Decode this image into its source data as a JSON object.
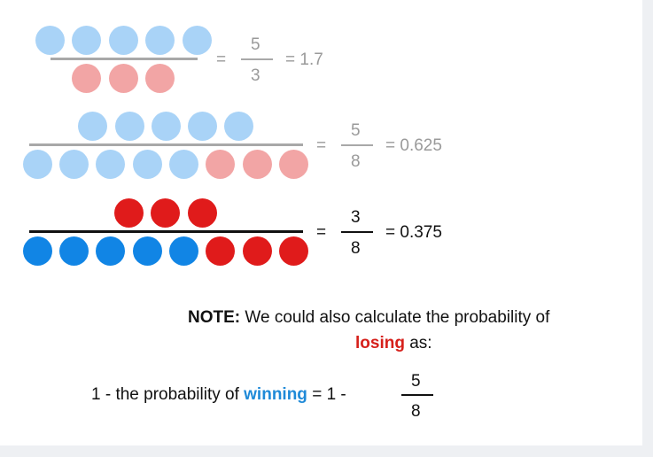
{
  "colors": {
    "light_blue": "#a9d3f7",
    "light_red": "#f2a5a5",
    "blue": "#1185e5",
    "red": "#e01b1b",
    "gray_line": "#a8a8a8",
    "black_line": "#111111",
    "highlight_blue": "#1f8ad8",
    "highlight_red": "#d6201b"
  },
  "rows": [
    {
      "numerator": [
        "light_blue",
        "light_blue",
        "light_blue",
        "light_blue",
        "light_blue"
      ],
      "denominator": [
        "light_red",
        "light_red",
        "light_red"
      ],
      "eq1": "=",
      "frac_num": "5",
      "frac_den": "3",
      "eq2": "= 1.7"
    },
    {
      "numerator": [
        "light_blue",
        "light_blue",
        "light_blue",
        "light_blue",
        "light_blue"
      ],
      "denominator": [
        "light_blue",
        "light_blue",
        "light_blue",
        "light_blue",
        "light_blue",
        "light_red",
        "light_red",
        "light_red"
      ],
      "eq1": "=",
      "frac_num": "5",
      "frac_den": "8",
      "eq2": "= 0.625"
    },
    {
      "numerator": [
        "red",
        "red",
        "red"
      ],
      "denominator": [
        "blue",
        "blue",
        "blue",
        "blue",
        "blue",
        "red",
        "red",
        "red"
      ],
      "eq1": "=",
      "frac_num": "3",
      "frac_den": "8",
      "eq2": "= 0.375"
    }
  ],
  "note": {
    "label": "NOTE:",
    "line1_rest": " We could also calculate the probability of",
    "losing": "losing",
    "as": " as:",
    "formula_prefix": "1 - the probability of ",
    "winning": "winning",
    "formula_suffix": " = 1 - ",
    "frac_num": "5",
    "frac_den": "8"
  }
}
